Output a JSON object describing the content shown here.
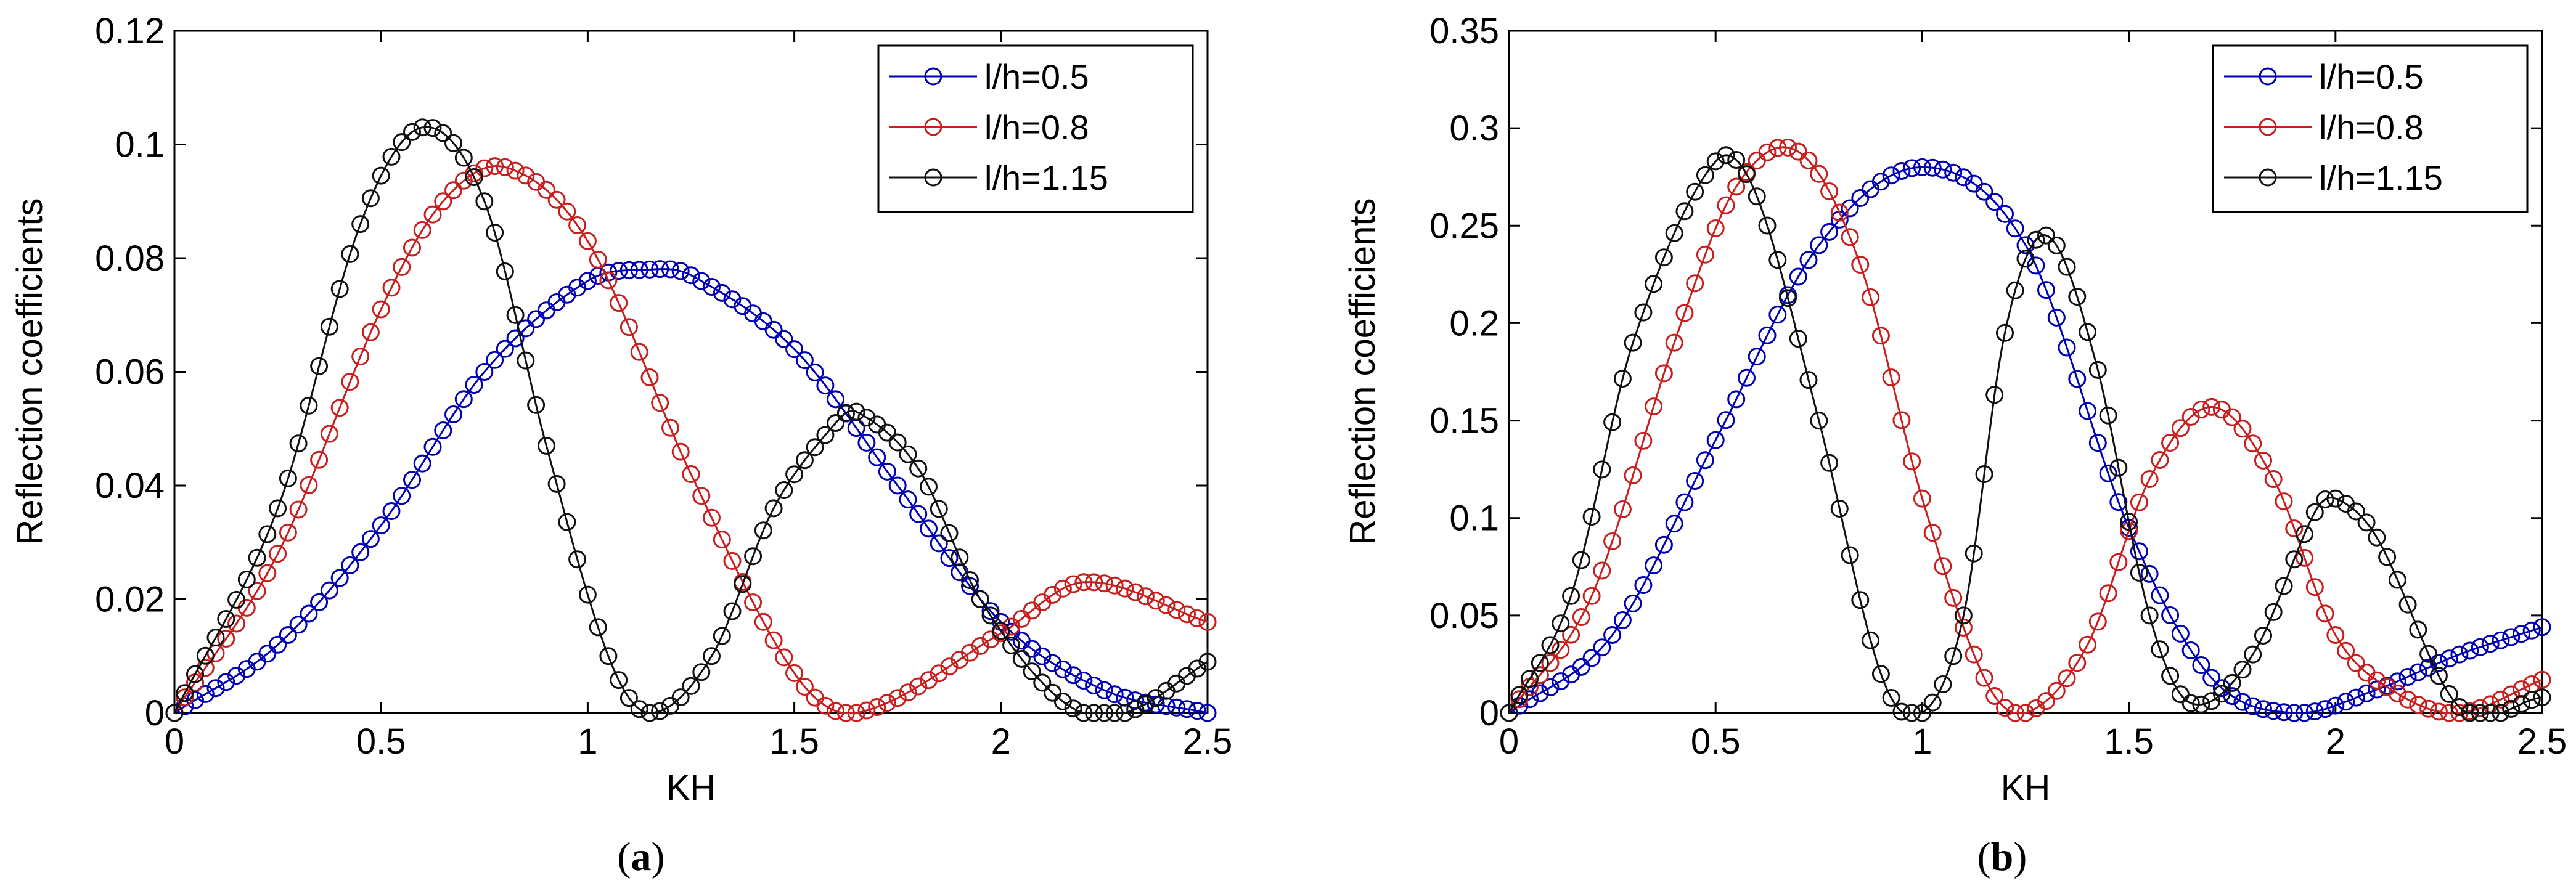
{
  "figure": {
    "caption_a": "a",
    "caption_b": "b"
  },
  "chart_data": [
    {
      "id": "a",
      "type": "line",
      "title": "",
      "xlabel": "KH",
      "ylabel": "Reflection coefficients",
      "xlim": [
        0,
        2.5
      ],
      "ylim": [
        0,
        0.12
      ],
      "xticks": [
        0,
        0.5,
        1,
        1.5,
        2,
        2.5
      ],
      "xtick_labels": [
        "0",
        "0.5",
        "1",
        "1.5",
        "2",
        "2.5"
      ],
      "yticks": [
        0,
        0.02,
        0.04,
        0.06,
        0.08,
        0.1,
        0.12
      ],
      "ytick_labels": [
        "0",
        "0.02",
        "0.04",
        "0.06",
        "0.08",
        "0.1",
        "0.12"
      ],
      "legend_position": "top-right",
      "series": [
        {
          "name": "l/h=0.5",
          "color": "#0000b4",
          "x": [
            0,
            0.25,
            0.5,
            0.75,
            1.0,
            1.15,
            1.25,
            1.5,
            1.75,
            2.0,
            2.25,
            2.5
          ],
          "y": [
            0,
            0.012,
            0.033,
            0.06,
            0.076,
            0.078,
            0.077,
            0.064,
            0.04,
            0.016,
            0.004,
            0.0
          ]
        },
        {
          "name": "l/h=0.8",
          "color": "#c81e1e",
          "x": [
            0,
            0.25,
            0.5,
            0.65,
            0.8,
            1.0,
            1.25,
            1.5,
            1.65,
            2.0,
            2.2,
            2.5
          ],
          "y": [
            0,
            0.028,
            0.071,
            0.09,
            0.096,
            0.083,
            0.042,
            0.007,
            0.0,
            0.014,
            0.023,
            0.016
          ]
        },
        {
          "name": "l/h=1.15",
          "color": "#111111",
          "x": [
            0,
            0.25,
            0.45,
            0.6,
            0.75,
            0.9,
            1.05,
            1.15,
            1.3,
            1.45,
            1.6,
            1.65,
            1.8,
            1.95,
            2.15,
            2.3,
            2.5
          ],
          "y": [
            0,
            0.036,
            0.086,
            0.103,
            0.09,
            0.047,
            0.01,
            0.0,
            0.01,
            0.036,
            0.051,
            0.053,
            0.043,
            0.02,
            0.002,
            0.0,
            0.009
          ]
        }
      ]
    },
    {
      "id": "b",
      "type": "line",
      "title": "",
      "xlabel": "KH",
      "ylabel": "Reflection coefficients",
      "xlim": [
        0,
        2.5
      ],
      "ylim": [
        0,
        0.35
      ],
      "xticks": [
        0,
        0.5,
        1,
        1.5,
        2,
        2.5
      ],
      "xtick_labels": [
        "0",
        "0.5",
        "1",
        "1.5",
        "2",
        "2.5"
      ],
      "yticks": [
        0,
        0.05,
        0.1,
        0.15,
        0.2,
        0.25,
        0.3,
        0.35
      ],
      "ytick_labels": [
        "0",
        "0.05",
        "0.1",
        "0.15",
        "0.2",
        "0.25",
        "0.3",
        "0.35"
      ],
      "legend_position": "top-right",
      "series": [
        {
          "name": "l/h=0.5",
          "color": "#0000b4",
          "x": [
            0,
            0.25,
            0.5,
            0.75,
            1.0,
            1.25,
            1.5,
            1.7,
            1.9,
            2.1,
            2.3,
            2.5
          ],
          "y": [
            0,
            0.04,
            0.14,
            0.24,
            0.28,
            0.24,
            0.095,
            0.018,
            0.0,
            0.012,
            0.03,
            0.044
          ]
        },
        {
          "name": "l/h=0.8",
          "color": "#c81e1e",
          "x": [
            0,
            0.2,
            0.4,
            0.55,
            0.7,
            0.85,
            1.0,
            1.15,
            1.25,
            1.4,
            1.55,
            1.7,
            1.85,
            2.0,
            2.15,
            2.3,
            2.5
          ],
          "y": [
            0,
            0.06,
            0.19,
            0.27,
            0.288,
            0.23,
            0.11,
            0.018,
            0.0,
            0.035,
            0.12,
            0.157,
            0.12,
            0.04,
            0.01,
            0.0,
            0.017
          ]
        },
        {
          "name": "l/h=1.15",
          "color": "#111111",
          "x": [
            0,
            0.15,
            0.3,
            0.5,
            0.6,
            0.75,
            0.9,
            1.0,
            1.1,
            1.2,
            1.3,
            1.42,
            1.55,
            1.65,
            1.8,
            1.95,
            2.0,
            2.1,
            2.3,
            2.5
          ],
          "y": [
            0,
            0.06,
            0.19,
            0.283,
            0.265,
            0.15,
            0.02,
            0.0,
            0.05,
            0.195,
            0.245,
            0.18,
            0.05,
            0.005,
            0.03,
            0.103,
            0.11,
            0.09,
            0.003,
            0.008
          ]
        }
      ]
    }
  ]
}
